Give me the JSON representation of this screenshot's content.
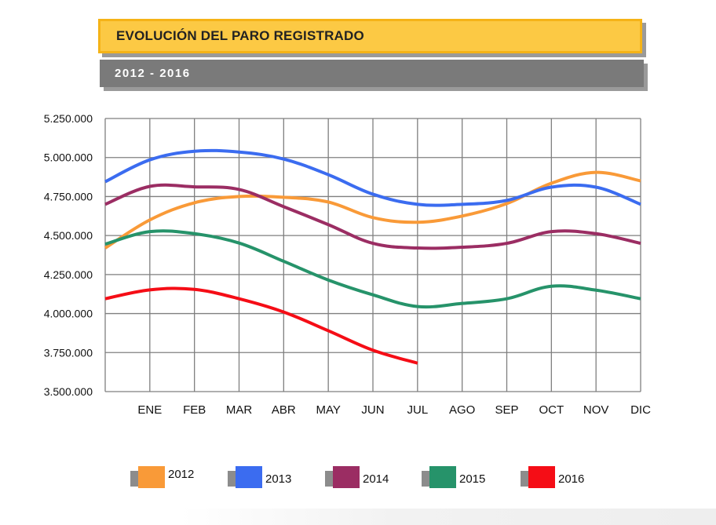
{
  "header": {
    "title": "EVOLUCIÓN DEL PARO REGISTRADO",
    "subtitle": "2012 - 2016"
  },
  "colors": {
    "title_bg": "#fcc944",
    "subtitle_bg": "#7a7a7a",
    "grid": "#7f7f7f"
  },
  "chart_data": {
    "type": "line",
    "categories": [
      "",
      "ENE",
      "FEB",
      "MAR",
      "ABR",
      "MAY",
      "JUN",
      "JUL",
      "AGO",
      "SEP",
      "OCT",
      "NOV",
      "DIC"
    ],
    "ylim": [
      3500000,
      5250000
    ],
    "yticks": [
      3500000,
      3750000,
      4000000,
      4250000,
      4500000,
      4750000,
      5000000,
      5250000
    ],
    "ytick_labels": [
      "3.500.000",
      "3.750.000",
      "4.000.000",
      "4.250.000",
      "4.500.000",
      "4.750.000",
      "5.000.000",
      "5.250.000"
    ],
    "grid": true,
    "legend_position": "bottom",
    "series": [
      {
        "name": "2012",
        "color": "#f99a38",
        "values": [
          4420000,
          4600000,
          4710000,
          4750000,
          4745000,
          4715000,
          4615000,
          4585000,
          4625000,
          4705000,
          4835000,
          4905000,
          4850000
        ]
      },
      {
        "name": "2013",
        "color": "#3b6cf0",
        "values": [
          4845000,
          4985000,
          5040000,
          5035000,
          4990000,
          4890000,
          4765000,
          4700000,
          4700000,
          4725000,
          4810000,
          4810000,
          4700000
        ]
      },
      {
        "name": "2014",
        "color": "#9b2d63",
        "values": [
          4700000,
          4815000,
          4812000,
          4795000,
          4685000,
          4570000,
          4450000,
          4420000,
          4425000,
          4450000,
          4525000,
          4512000,
          4450000
        ]
      },
      {
        "name": "2015",
        "color": "#26936a",
        "values": [
          4445000,
          4525000,
          4512000,
          4452000,
          4335000,
          4215000,
          4120000,
          4045000,
          4065000,
          4095000,
          4175000,
          4150000,
          4095000
        ]
      },
      {
        "name": "2016",
        "color": "#f50d16",
        "values": [
          4095000,
          4152000,
          4155000,
          4095000,
          4010000,
          3890000,
          3765000,
          3682000,
          null,
          null,
          null,
          null,
          null
        ]
      }
    ]
  }
}
